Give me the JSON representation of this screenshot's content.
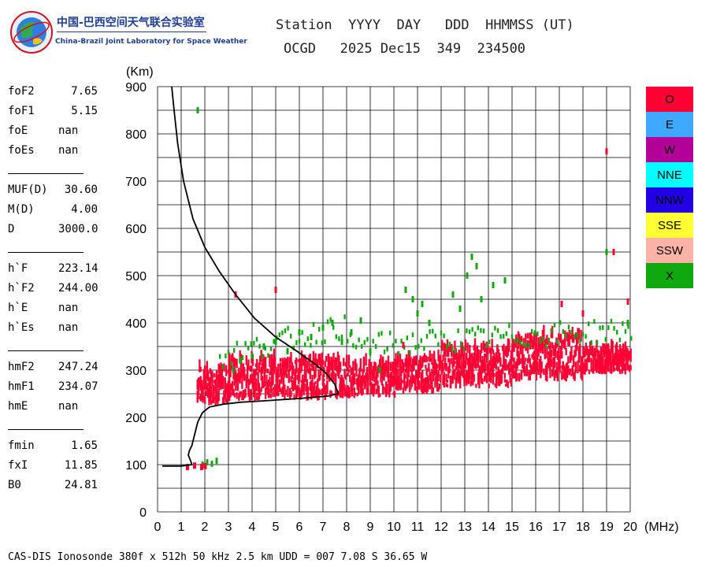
{
  "header": {
    "logo_cn": "中国-巴西空间天气联合实验室",
    "logo_en": "China-Brazil Joint Laboratory for Space Weather",
    "station_line": "Station  YYYY  DAY   DDD  HHMMSS (UT)",
    "values_line": "OCGD   2025 Dec15  349  234500"
  },
  "parameters": [
    {
      "group": [
        {
          "name": "foF2",
          "value": "7.65"
        },
        {
          "name": "foF1",
          "value": "5.15"
        },
        {
          "name": "foE",
          "value": "nan"
        },
        {
          "name": "foEs",
          "value": "nan"
        }
      ]
    },
    {
      "group": [
        {
          "name": "MUF(D)",
          "value": "30.60"
        },
        {
          "name": "M(D)",
          "value": "4.00"
        },
        {
          "name": "D",
          "value": "3000.0"
        }
      ]
    },
    {
      "group": [
        {
          "name": "h`F",
          "value": "223.14"
        },
        {
          "name": "h`F2",
          "value": "244.00"
        },
        {
          "name": "h`E",
          "value": "nan"
        },
        {
          "name": "h`Es",
          "value": "nan"
        }
      ]
    },
    {
      "group": [
        {
          "name": "hmF2",
          "value": "247.24"
        },
        {
          "name": "hmF1",
          "value": "234.07"
        },
        {
          "name": "hmE",
          "value": "nan"
        }
      ]
    },
    {
      "group": [
        {
          "name": "fmin",
          "value": "1.65"
        },
        {
          "name": "fxI",
          "value": "11.85"
        },
        {
          "name": "B0",
          "value": "24.81"
        }
      ]
    }
  ],
  "legend": [
    {
      "label": "O",
      "color": "#ff0035"
    },
    {
      "label": "E",
      "color": "#3fa9ff"
    },
    {
      "label": "W",
      "color": "#b30099"
    },
    {
      "label": "NNE",
      "color": "#00ffff"
    },
    {
      "label": "NNW",
      "color": "#2200e6"
    },
    {
      "label": "SSE",
      "color": "#ffff33"
    },
    {
      "label": "SSW",
      "color": "#ffb3a6"
    },
    {
      "label": "X",
      "color": "#0fa90f"
    }
  ],
  "footer": "CAS-DIS Ionosonde 380f x 512h 50 kHz 2.5 km UDD = 007 7.08 S 36.65 W",
  "chart_data": {
    "type": "scatter",
    "xlabel": "(MHz)",
    "ylabel": "(Km)",
    "xlim": [
      0,
      20
    ],
    "ylim": [
      0,
      900
    ],
    "xticks": [
      0,
      1,
      2,
      3,
      4,
      5,
      6,
      7,
      8,
      9,
      10,
      11,
      12,
      13,
      14,
      15,
      16,
      17,
      18,
      19,
      20
    ],
    "yticks": [
      0,
      100,
      200,
      300,
      400,
      500,
      600,
      700,
      800,
      900
    ],
    "grid": true,
    "o_trace": {
      "color": "#ff0035",
      "bands": [
        {
          "x0": 1.65,
          "x1": 3.0,
          "ylow": 225,
          "yhigh": 300
        },
        {
          "x0": 3.0,
          "x1": 7.7,
          "ylow": 235,
          "yhigh": 320
        },
        {
          "x0": 7.7,
          "x1": 10.0,
          "ylow": 240,
          "yhigh": 310
        },
        {
          "x0": 10.0,
          "x1": 12.0,
          "ylow": 250,
          "yhigh": 320
        },
        {
          "x0": 12.0,
          "x1": 15.0,
          "ylow": 260,
          "yhigh": 345
        },
        {
          "x0": 15.0,
          "x1": 18.0,
          "ylow": 275,
          "yhigh": 370
        },
        {
          "x0": 18.0,
          "x1": 20.0,
          "ylow": 290,
          "yhigh": 340
        }
      ]
    },
    "x_trace": {
      "color": "#0fa90f",
      "points": [
        [
          1.7,
          850
        ],
        [
          1.9,
          100
        ],
        [
          2.1,
          105
        ],
        [
          2.3,
          102
        ],
        [
          2.5,
          108
        ],
        [
          3.2,
          300
        ],
        [
          3.5,
          320
        ],
        [
          4.0,
          330
        ],
        [
          4.5,
          350
        ],
        [
          5.0,
          360
        ],
        [
          5.5,
          340
        ],
        [
          6.0,
          380
        ],
        [
          6.5,
          370
        ],
        [
          7.0,
          390
        ],
        [
          7.4,
          400
        ],
        [
          7.8,
          360
        ],
        [
          8.2,
          380
        ],
        [
          8.6,
          405
        ],
        [
          9.0,
          340
        ],
        [
          9.4,
          300
        ],
        [
          10.5,
          470
        ],
        [
          10.8,
          450
        ],
        [
          11.0,
          420
        ],
        [
          11.2,
          440
        ],
        [
          11.5,
          400
        ],
        [
          12.5,
          460
        ],
        [
          12.8,
          430
        ],
        [
          13.1,
          500
        ],
        [
          13.3,
          540
        ],
        [
          13.5,
          520
        ],
        [
          13.7,
          450
        ],
        [
          14.2,
          480
        ],
        [
          14.7,
          490
        ],
        [
          19.0,
          550
        ],
        [
          19.9,
          400
        ]
      ]
    },
    "scattered_o": [
      [
        3.3,
        460
      ],
      [
        5.0,
        470
      ],
      [
        10.4,
        353
      ],
      [
        19.0,
        763
      ],
      [
        19.3,
        550
      ],
      [
        18.0,
        420
      ],
      [
        17.1,
        440
      ],
      [
        19.9,
        445
      ]
    ],
    "profile": {
      "color": "#000000",
      "points": [
        [
          0.6,
          900
        ],
        [
          0.7,
          850
        ],
        [
          0.85,
          780
        ],
        [
          1.1,
          700
        ],
        [
          1.5,
          620
        ],
        [
          2.0,
          560
        ],
        [
          2.6,
          510
        ],
        [
          3.3,
          460
        ],
        [
          4.1,
          410
        ],
        [
          5.0,
          370
        ],
        [
          5.9,
          340
        ],
        [
          6.6,
          315
        ],
        [
          7.1,
          295
        ],
        [
          7.5,
          270
        ],
        [
          7.65,
          250
        ],
        [
          7.2,
          245
        ],
        [
          6.0,
          240
        ],
        [
          4.5,
          235
        ],
        [
          3.5,
          232
        ],
        [
          2.8,
          228
        ],
        [
          2.2,
          222
        ],
        [
          1.9,
          210
        ],
        [
          1.7,
          190
        ],
        [
          1.55,
          160
        ],
        [
          1.45,
          140
        ],
        [
          1.35,
          130
        ],
        [
          1.3,
          120
        ],
        [
          1.4,
          108
        ],
        [
          1.45,
          100
        ],
        [
          1.0,
          97
        ],
        [
          0.2,
          97
        ]
      ]
    }
  }
}
